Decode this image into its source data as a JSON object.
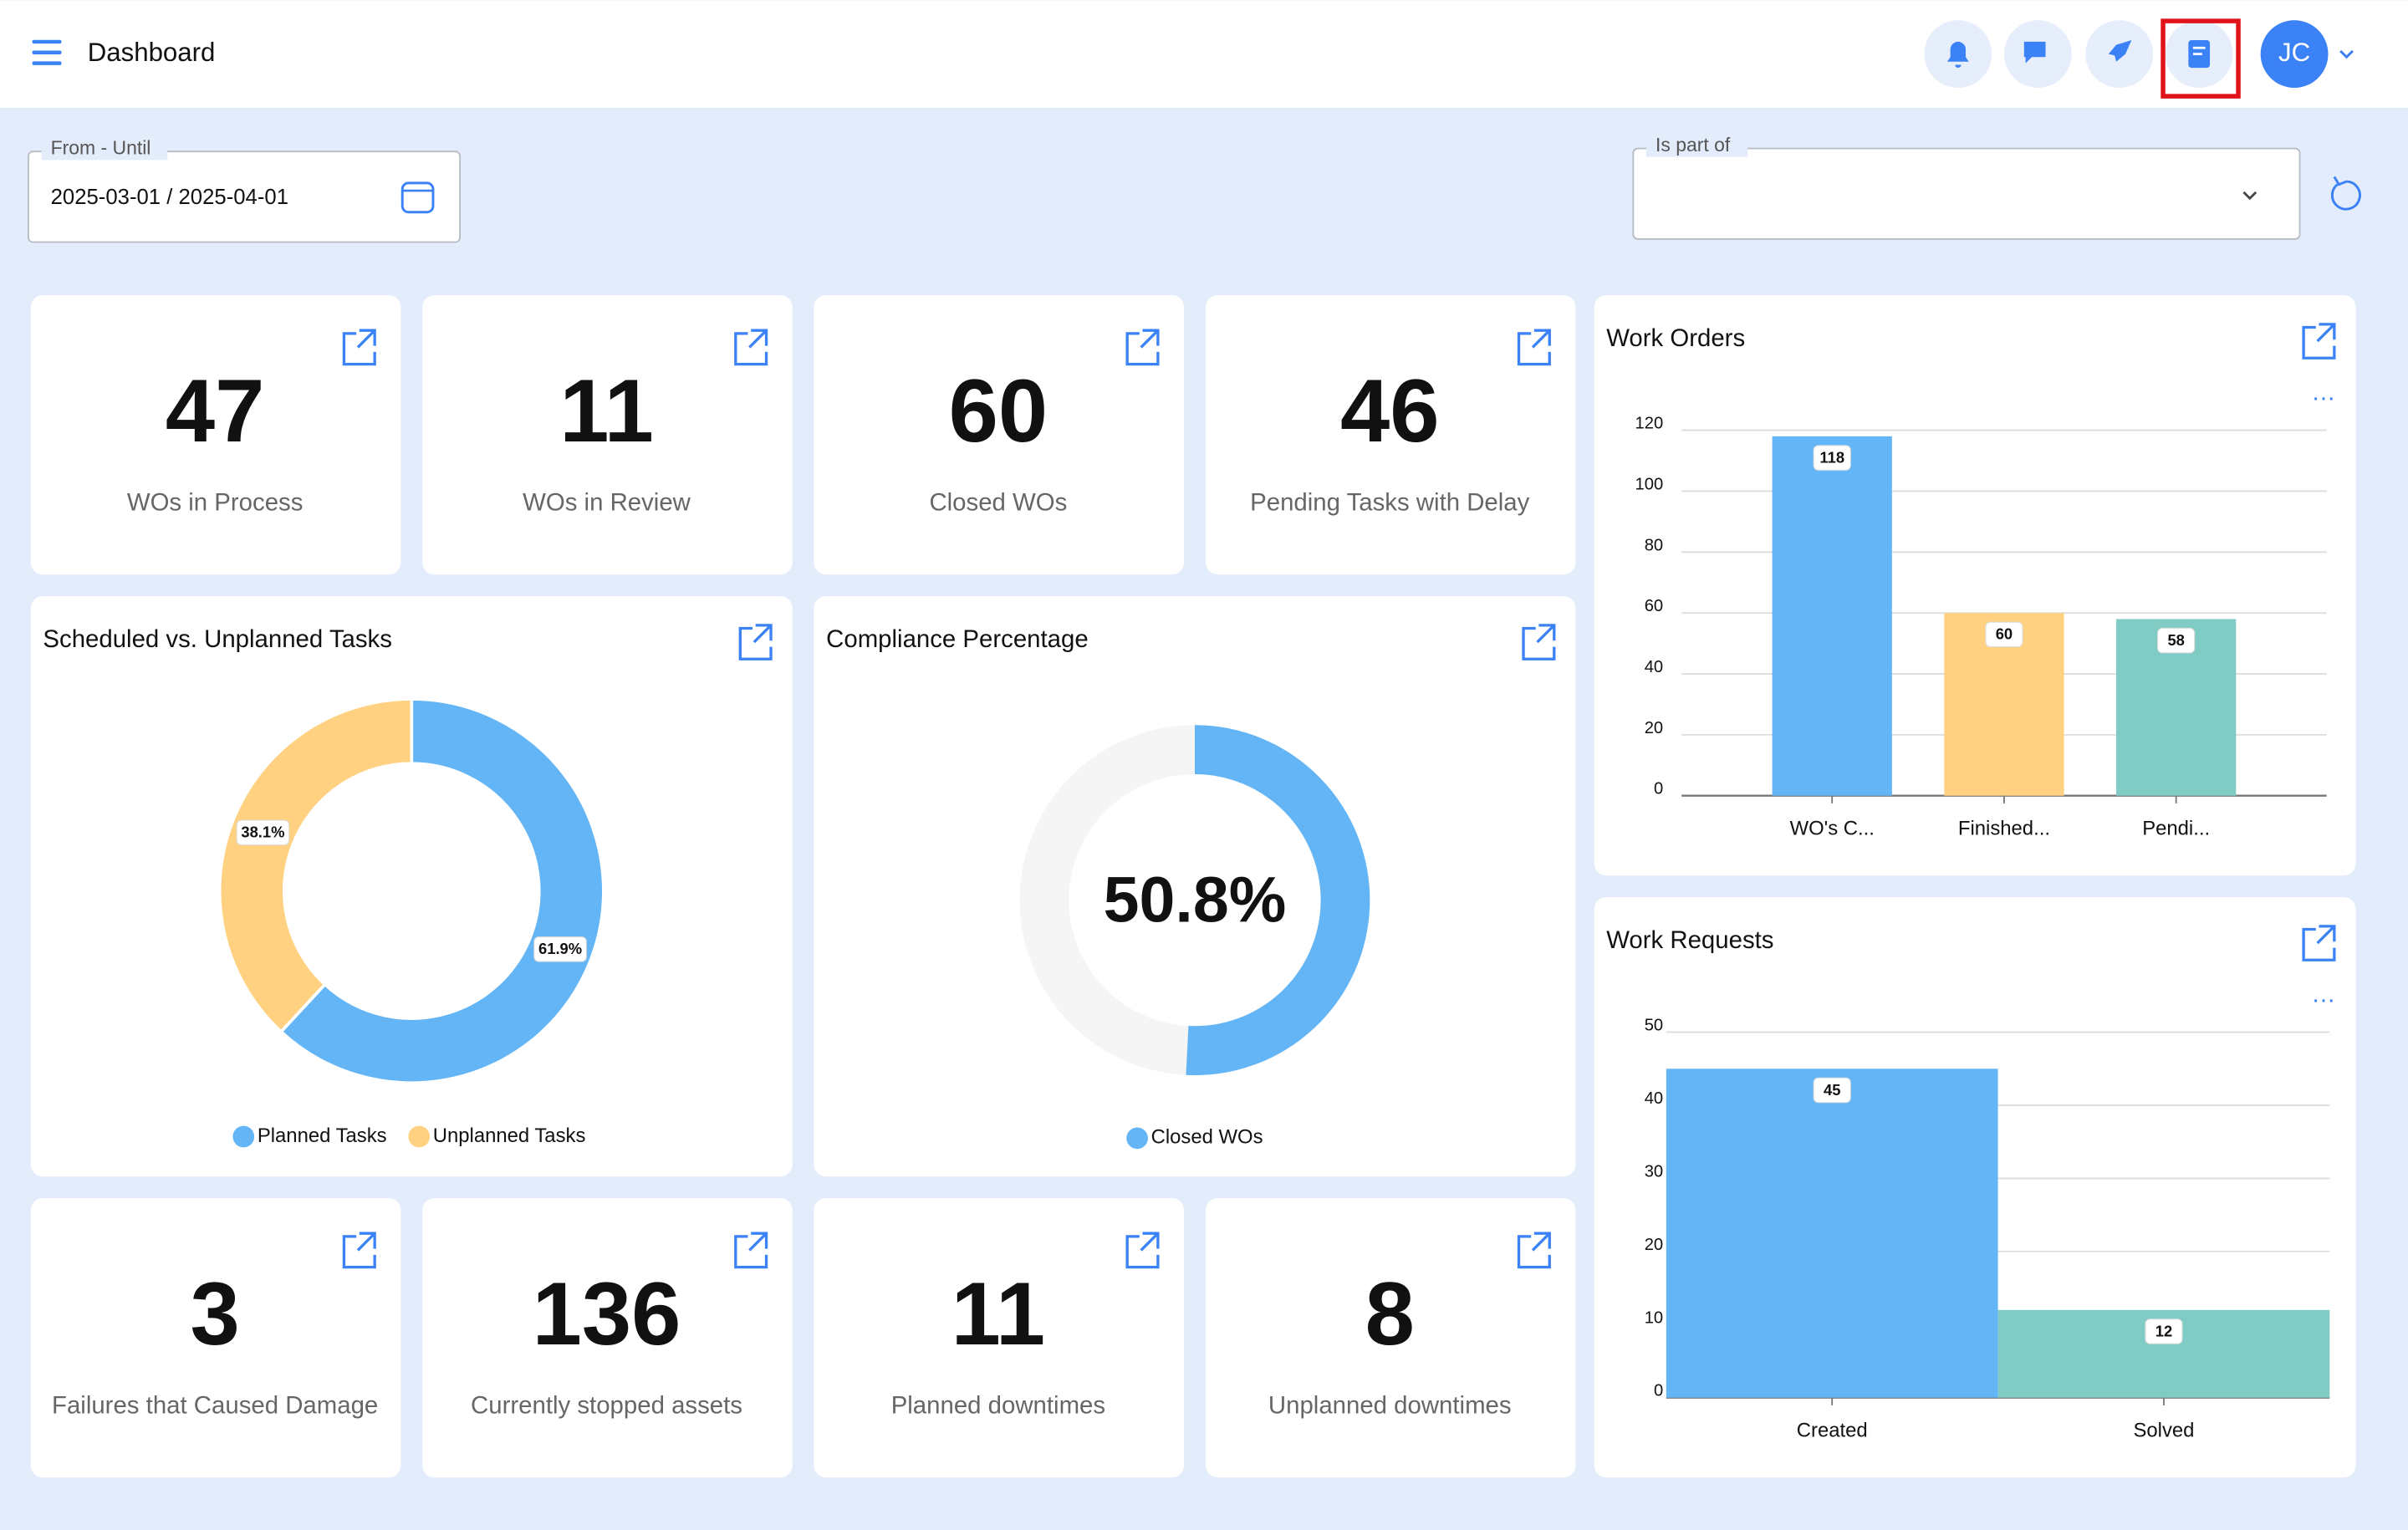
{
  "header": {
    "title": "Dashboard",
    "avatar": "JC"
  },
  "filters": {
    "date_label": "From - Until",
    "date_value": "2025-03-01 / 2025-04-01",
    "part_label": "Is part of"
  },
  "kpis": [
    {
      "value": 47,
      "label": "WOs in Process"
    },
    {
      "value": 11,
      "label": "WOs in Review"
    },
    {
      "value": 60,
      "label": "Closed WOs"
    },
    {
      "value": 46,
      "label": "Pending Tasks with Delay"
    },
    {
      "value": 3,
      "label": "Failures that Caused Damage"
    },
    {
      "value": 136,
      "label": "Currently stopped assets"
    },
    {
      "value": 11,
      "label": "Planned downtimes"
    },
    {
      "value": 8,
      "label": "Unplanned downtimes"
    }
  ],
  "chart_data": [
    {
      "type": "pie",
      "title": "Scheduled vs. Unplanned Tasks",
      "categories": [
        "Planned Tasks",
        "Unplanned Tasks"
      ],
      "values": [
        61.9,
        38.1
      ],
      "value_labels": [
        "61.9%",
        "38.1%"
      ],
      "colors": [
        "#64b5f6",
        "#ffd180"
      ]
    },
    {
      "type": "gauge",
      "title": "Compliance Percentage",
      "categories": [
        "Closed WOs"
      ],
      "values": [
        50.8
      ],
      "value_labels": [
        "50.8%"
      ],
      "colors": [
        "#64b5f6"
      ],
      "track_color": "#f5f5f5"
    },
    {
      "type": "bar",
      "title": "Work Orders",
      "categories": [
        "WO's C...",
        "Finished...",
        "Pendi..."
      ],
      "values": [
        118,
        60,
        58
      ],
      "colors": [
        "#64b5f6",
        "#ffd180",
        "#80cbc4"
      ],
      "ylim": [
        0,
        120
      ],
      "yticks": [
        0,
        20,
        40,
        60,
        80,
        100,
        120
      ],
      "grid": true
    },
    {
      "type": "bar",
      "title": "Work Requests",
      "categories": [
        "Created",
        "Solved"
      ],
      "values": [
        45,
        12
      ],
      "colors": [
        "#64b5f6",
        "#80cbc4"
      ],
      "ylim": [
        0,
        50
      ],
      "yticks": [
        0,
        10,
        20,
        30,
        40,
        50
      ],
      "grid": true
    }
  ]
}
